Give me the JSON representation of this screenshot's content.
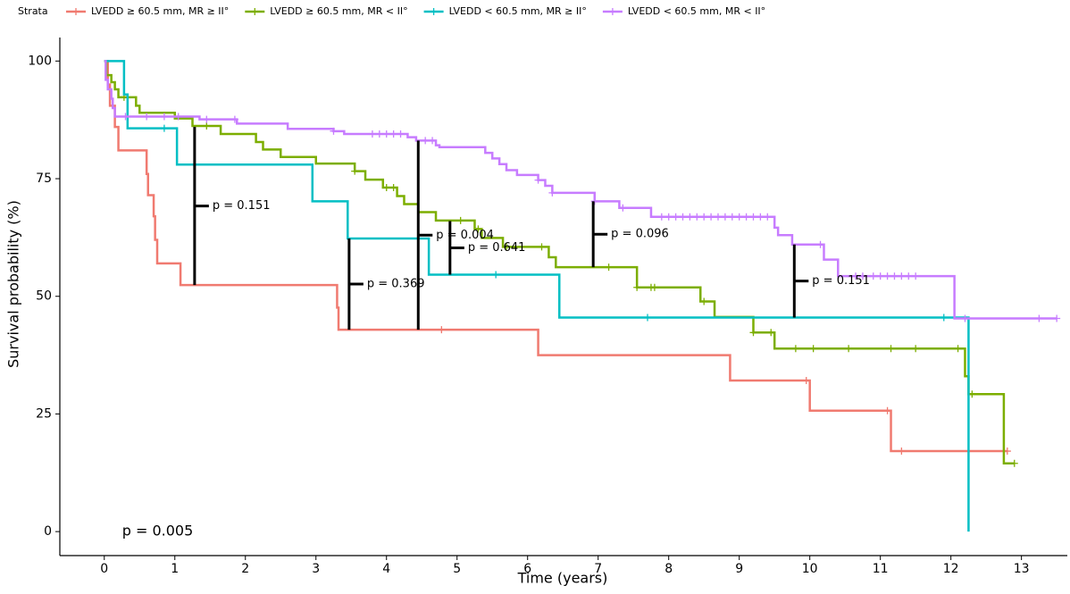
{
  "chart_data": {
    "type": "km",
    "legend_title": "Strata",
    "legend_position": "top",
    "x_label": "Time (years)",
    "y_label": "Survival probability (%)",
    "xlim": [
      -0.63,
      13.65
    ],
    "ylim": [
      -5.1,
      105
    ],
    "xticks": [
      0,
      1,
      2,
      3,
      4,
      5,
      6,
      7,
      8,
      9,
      10,
      11,
      12,
      13
    ],
    "yticks": [
      0,
      25,
      50,
      75,
      100
    ],
    "overall_p": "p = 0.005",
    "series": [
      {
        "name": "LVEDD ≥ 60.5 mm, MR ≥ II°",
        "color": "#f07a70",
        "x": [
          0,
          0.05,
          0.08,
          0.15,
          0.2,
          0.6,
          0.62,
          0.7,
          0.72,
          0.75,
          1.08,
          3.3,
          3.32,
          6.15,
          8.87,
          10.0,
          11.15,
          12.8
        ],
        "values": [
          100,
          95,
          90.5,
          86,
          81,
          76,
          71.5,
          67,
          62,
          57,
          52.4,
          47.6,
          42.9,
          37.5,
          32.1,
          25.7,
          17.1,
          17.1
        ],
        "censor_x": [
          4.78,
          9.95,
          11.1,
          11.3,
          12.8
        ]
      },
      {
        "name": "LVEDD ≥ 60.5 mm, MR < II°",
        "color": "#7cae00",
        "x": [
          0,
          0.03,
          0.1,
          0.15,
          0.2,
          0.45,
          0.5,
          1.0,
          1.25,
          1.65,
          2.15,
          2.25,
          2.5,
          3.0,
          3.55,
          3.7,
          3.95,
          4.15,
          4.25,
          4.45,
          4.7,
          5.25,
          5.35,
          5.65,
          6.3,
          6.4,
          7.55,
          8.45,
          8.65,
          9.2,
          9.5,
          12.2,
          12.25,
          12.75,
          12.9
        ],
        "values": [
          100,
          97,
          95.5,
          94,
          92.3,
          90.5,
          89,
          87.8,
          86.2,
          84.5,
          82.8,
          81.2,
          79.6,
          78.2,
          76.6,
          74.8,
          73.1,
          71.3,
          69.6,
          67.9,
          66.1,
          64.3,
          62.4,
          60.5,
          58.3,
          56.2,
          51.9,
          48.9,
          45.6,
          42.3,
          38.9,
          33,
          29.2,
          14.5,
          14.5
        ],
        "censor_x": [
          0.28,
          1.45,
          3.55,
          4.0,
          4.1,
          5.05,
          5.3,
          5.7,
          6.2,
          7.15,
          7.55,
          7.75,
          7.8,
          8.5,
          9.2,
          9.45,
          9.8,
          10.05,
          10.55,
          11.15,
          11.5,
          12.1,
          12.3,
          12.9
        ]
      },
      {
        "name": "LVEDD < 60.5 mm, MR ≥ II°",
        "color": "#00bfc4",
        "x": [
          0,
          0.28,
          0.33,
          1.03,
          2.95,
          3.45,
          4.6,
          6.45,
          12.25
        ],
        "values": [
          100,
          92.9,
          85.7,
          78,
          70.2,
          62.3,
          54.6,
          45.5,
          0
        ],
        "censor_x": [
          0.85,
          5.55,
          7.7,
          11.9
        ]
      },
      {
        "name": "LVEDD < 60.5 mm, MR < II°",
        "color": "#c77cff",
        "x": [
          0,
          0.02,
          0.05,
          0.1,
          0.12,
          0.15,
          1.35,
          1.88,
          2.6,
          3.25,
          3.4,
          4.3,
          4.42,
          4.7,
          4.75,
          5.4,
          5.5,
          5.6,
          5.7,
          5.85,
          6.15,
          6.25,
          6.35,
          6.95,
          7.3,
          7.75,
          9.5,
          9.55,
          9.75,
          10.2,
          10.4,
          12.05,
          13.5
        ],
        "values": [
          100,
          96,
          94,
          92,
          90,
          88.2,
          87.6,
          86.7,
          85.6,
          85.1,
          84.5,
          83.8,
          83.1,
          82.1,
          81.7,
          80.5,
          79.3,
          78.1,
          76.8,
          75.8,
          74.7,
          73.5,
          72,
          70.2,
          68.8,
          66.9,
          64.6,
          63,
          61,
          57.8,
          54.3,
          45.3,
          45.3
        ],
        "censor_x": [
          0.3,
          0.6,
          0.85,
          1.05,
          1.45,
          1.85,
          3.25,
          3.8,
          3.9,
          4.0,
          4.1,
          4.2,
          4.55,
          4.65,
          6.15,
          6.35,
          6.95,
          7.35,
          7.9,
          8.0,
          8.1,
          8.2,
          8.3,
          8.4,
          8.5,
          8.6,
          8.7,
          8.8,
          8.9,
          9.0,
          9.1,
          9.2,
          9.3,
          9.4,
          10.15,
          10.65,
          10.75,
          10.9,
          11.0,
          11.1,
          11.2,
          11.3,
          11.4,
          11.5,
          12.2,
          13.25,
          13.5
        ]
      }
    ],
    "comparisons": [
      {
        "x": 1.28,
        "y": [
          86,
          52.4
        ],
        "label": "p = 0.151"
      },
      {
        "x": 3.47,
        "y": [
          62.3,
          42.9
        ],
        "label": "p = 0.369"
      },
      {
        "x": 4.45,
        "y": [
          83.1,
          42.9
        ],
        "label": "p = 0.004"
      },
      {
        "x": 4.9,
        "y": [
          66,
          54.6
        ],
        "label": "p = 0.641"
      },
      {
        "x": 6.93,
        "y": [
          70.2,
          56.2
        ],
        "label": "p = 0.096"
      },
      {
        "x": 9.78,
        "y": [
          61,
          45.5
        ],
        "label": "p = 0.151"
      }
    ]
  }
}
